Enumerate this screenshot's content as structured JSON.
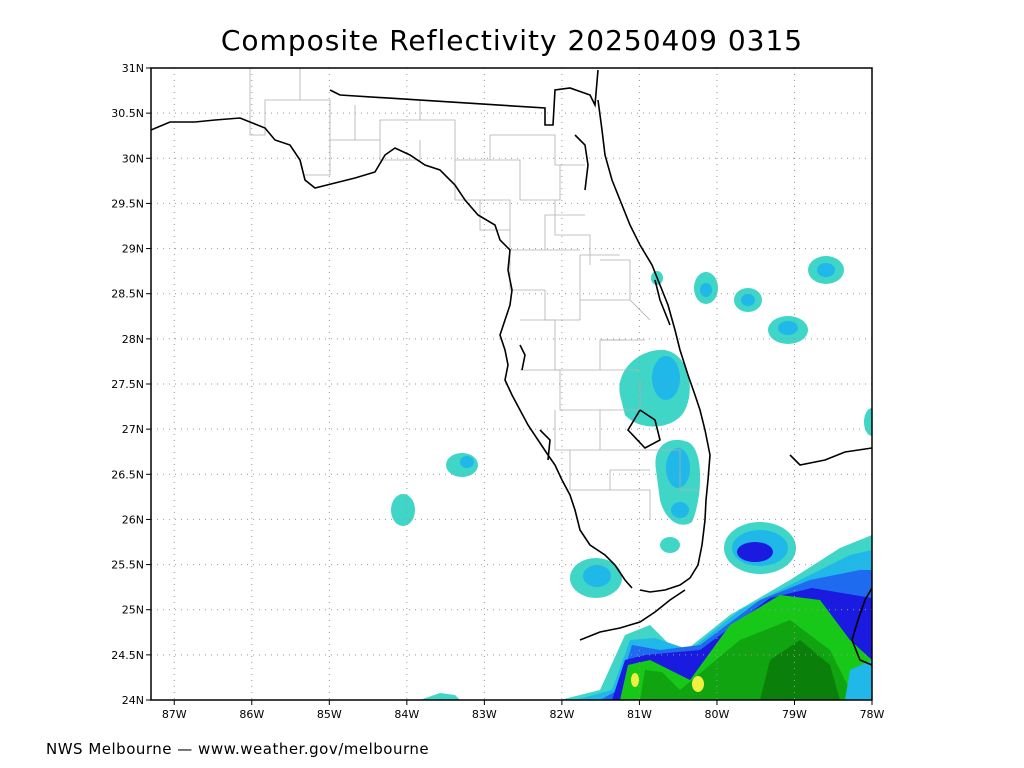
{
  "title": "Composite Reflectivity 20250409 0315",
  "footer": "NWS Melbourne — www.weather.gov/melbourne",
  "map": {
    "lat_range": [
      24,
      31
    ],
    "lon_range": [
      -87.3,
      -78
    ],
    "lat_ticks": [
      "31N",
      "30.5N",
      "30N",
      "29.5N",
      "29N",
      "28.5N",
      "28N",
      "27.5N",
      "27N",
      "26.5N",
      "26N",
      "25.5N",
      "25N",
      "24.5N",
      "24N"
    ],
    "lon_ticks": [
      "87W",
      "86W",
      "85W",
      "84W",
      "83W",
      "82W",
      "81W",
      "80W",
      "79W",
      "78W"
    ],
    "colors": {
      "light_cyan": "#3fd6c8",
      "cyan": "#1fb8e8",
      "blue": "#1f6bf0",
      "dark_blue": "#1a1ae0",
      "green_light": "#18c818",
      "green": "#11a411",
      "green_dark": "#0a800a",
      "yellow": "#f0f040",
      "coast": "#000000",
      "county": "#b0b0b0"
    }
  }
}
